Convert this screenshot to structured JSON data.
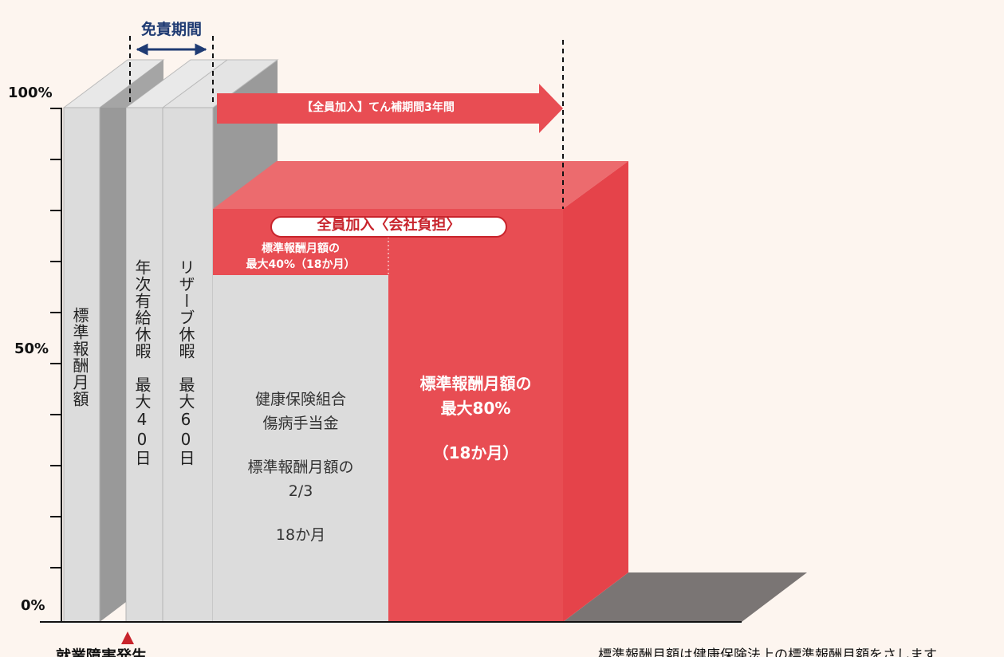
{
  "exemption_period": "免責期間",
  "y_axis": {
    "labels": [
      "100%",
      "50%",
      "0%"
    ]
  },
  "coverage_arrow": "【全員加入】てん補期間3年間",
  "columns": [
    {
      "label": "標準報酬月額"
    },
    {
      "label": "年次有給休暇　最大40日"
    },
    {
      "label": "リザーブ休暇　最大60日"
    }
  ],
  "sickness_benefit": {
    "paragraphs": [
      [
        "健康保険組合",
        "傷病手当金"
      ],
      [
        "標準報酬月額の",
        "2/3"
      ],
      [
        "18か月"
      ]
    ]
  },
  "company_plan": {
    "badge": "全員加入〈会社負担〉",
    "top_lines": [
      "標準報酬月額の",
      "最大40%（18か月）"
    ],
    "main_lines": [
      "標準報酬月額の",
      "最大80%"
    ],
    "period": "（18か月）"
  },
  "footer": {
    "event": "就業障害発生",
    "note": "標準報酬月額は健康保険法上の標準報酬月額をさします"
  }
}
